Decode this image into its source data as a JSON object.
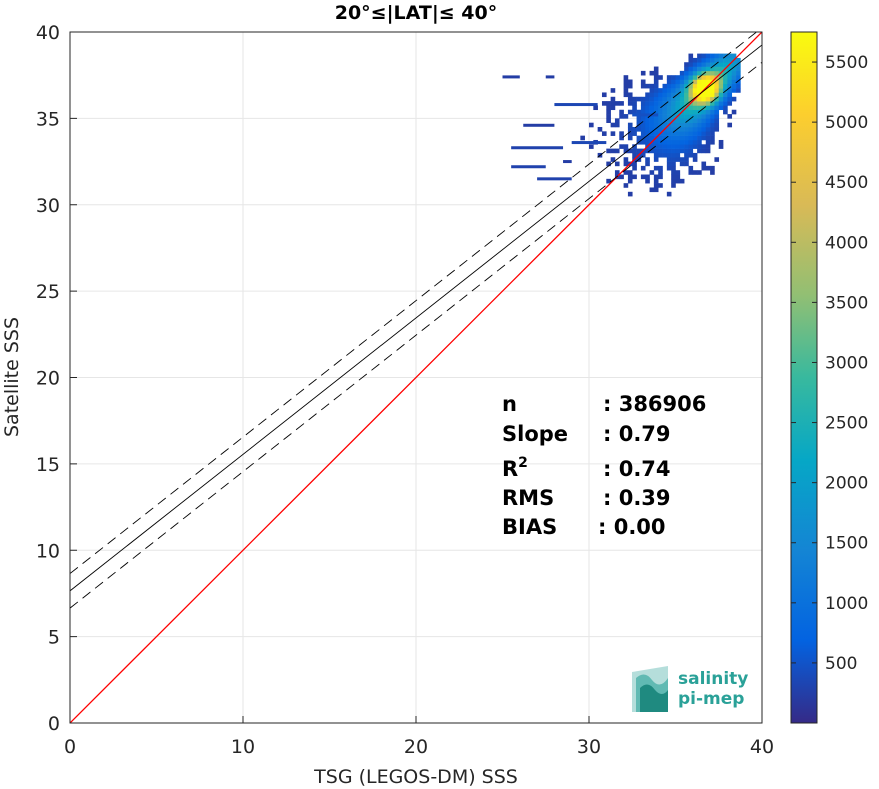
{
  "chart_data": {
    "type": "scatter",
    "title": "20°≤|LAT|≤ 40°",
    "xlabel": "TSG (LEGOS-DM) SSS",
    "ylabel": "Satellite SSS",
    "xlim": [
      0,
      40
    ],
    "ylim": [
      0,
      40
    ],
    "xticks": [
      "0",
      "10",
      "20",
      "30",
      "40"
    ],
    "yticks": [
      "0",
      "5",
      "10",
      "15",
      "20",
      "25",
      "30",
      "35",
      "40"
    ],
    "grid": true,
    "density_histogram": {
      "description_cells": [
        {
          "x": 36.5,
          "y": 36.5,
          "count": 5700
        },
        {
          "x": 36.0,
          "y": 36.2,
          "count": 4000
        },
        {
          "x": 35.5,
          "y": 35.8,
          "count": 2000
        },
        {
          "x": 35.0,
          "y": 35.3,
          "count": 900
        },
        {
          "x": 34.0,
          "y": 34.7,
          "count": 400
        }
      ]
    },
    "lines": [
      {
        "name": "identity",
        "slope": 1.0,
        "intercept": 0.0,
        "color": "#ff0000"
      },
      {
        "name": "fit",
        "slope": 0.79,
        "intercept": 7.65,
        "color": "#000000",
        "style": "solid"
      },
      {
        "name": "fit-upper",
        "slope": 0.79,
        "intercept": 8.65,
        "color": "#000000",
        "style": "dashed"
      },
      {
        "name": "fit-lower",
        "slope": 0.79,
        "intercept": 6.65,
        "color": "#000000",
        "style": "dashed"
      }
    ],
    "colorbar": {
      "min": 0,
      "max": 5750,
      "ticks": [
        "500",
        "1000",
        "1500",
        "2000",
        "2500",
        "3000",
        "3500",
        "4000",
        "4500",
        "5000",
        "5500"
      ],
      "colormap": "parula"
    },
    "stats": [
      {
        "label": "n",
        "sup": "",
        "value": ": 386906"
      },
      {
        "label": "Slope",
        "sup": "",
        "value": ": 0.79"
      },
      {
        "label": "R",
        "sup": "2",
        "value": ": 0.74"
      },
      {
        "label": "RMS",
        "sup": "",
        "value": ": 0.39"
      },
      {
        "label": "BIAS",
        "sup": "",
        "value": ": 0.00"
      }
    ]
  },
  "logo": {
    "line1": "salinity",
    "line2": "pi-mep"
  }
}
